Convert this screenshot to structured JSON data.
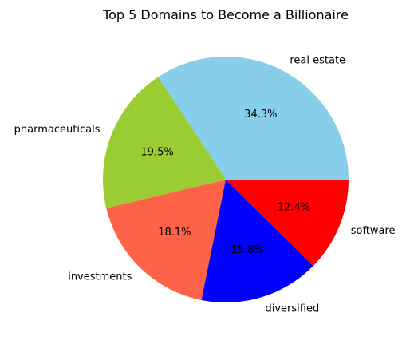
{
  "chart_data": {
    "type": "pie",
    "title": "Top 5 Domains to Become a Billionaire",
    "slices": [
      {
        "label": "real estate",
        "value": 34.3,
        "pct_label": "34.3%",
        "color": "#87CEEB"
      },
      {
        "label": "pharmaceuticals",
        "value": 19.5,
        "pct_label": "19.5%",
        "color": "#9ACD32"
      },
      {
        "label": "investments",
        "value": 18.1,
        "pct_label": "18.1%",
        "color": "#FF6347"
      },
      {
        "label": "diversified",
        "value": 15.8,
        "pct_label": "15.8%",
        "color": "#0000FF"
      },
      {
        "label": "software",
        "value": 12.4,
        "pct_label": "12.4%",
        "color": "#FF0000"
      }
    ],
    "start_angle_deg": 0,
    "direction": "counterclockwise",
    "legend": "none"
  }
}
